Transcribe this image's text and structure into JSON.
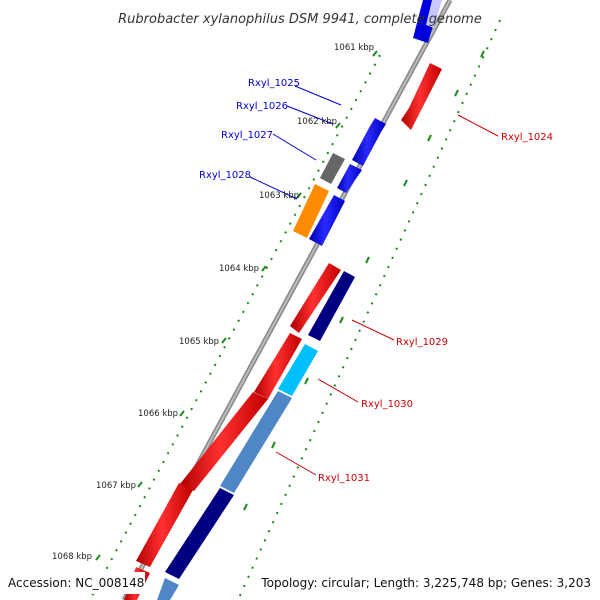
{
  "title": "Rubrobacter xylanophilus DSM 9941, complete genome",
  "accession": "Accession: NC_008148",
  "summary": "Topology: circular; Length: 3,225,748 bp; Genes: 3,203",
  "ticks": [
    "1061 kbp",
    "1062 kbp",
    "1063 kbp",
    "1064 kbp",
    "1065 kbp",
    "1066 kbp",
    "1067 kbp",
    "1068 kbp"
  ],
  "genes_left": [
    "Rxyl_1025",
    "Rxyl_1026",
    "Rxyl_1027",
    "Rxyl_1028"
  ],
  "genes_right": [
    "Rxyl_1024",
    "Rxyl_1029",
    "Rxyl_1030",
    "Rxyl_1031"
  ],
  "colors": {
    "forward": "#ff0000",
    "reverse": "#0000ff",
    "navy": "#000080",
    "cyan": "#00bfff",
    "steel": "#4f86c6",
    "gray": "#666666",
    "orange": "#ff8c00",
    "backbone": "#888888",
    "dots": "#1a8a1a",
    "label_left": "#0000cc",
    "label_right": "#cc0000"
  }
}
